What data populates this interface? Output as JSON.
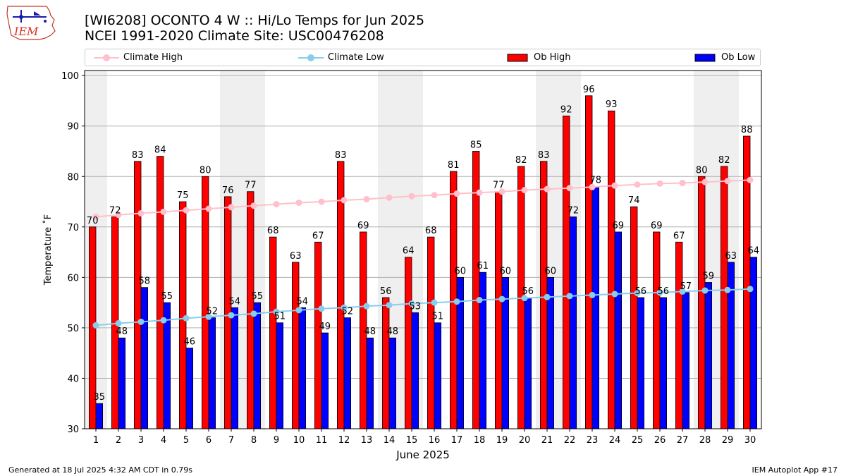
{
  "logo_text": "IEM",
  "title_line1": "[WI6208] OCONTO 4 W :: Hi/Lo Temps for Jun 2025",
  "title_line2": "NCEI 1991-2020 Climate Site: USC00476208",
  "footer_left": "Generated at 18 Jul 2025 4:32 AM CDT in 0.79s",
  "footer_right": "IEM Autoplot App #17",
  "legend": [
    {
      "label": "Climate High",
      "kind": "line",
      "color": "#ffc0cb"
    },
    {
      "label": "Climate Low",
      "kind": "line",
      "color": "#87ceeb"
    },
    {
      "label": "Ob High",
      "kind": "bar",
      "color": "#ff0000"
    },
    {
      "label": "Ob Low",
      "kind": "bar",
      "color": "#0000ff"
    }
  ],
  "chart_data": {
    "type": "bar",
    "xlabel": "June 2025",
    "ylabel": "Temperature ˚F",
    "ylim": [
      30,
      101
    ],
    "yticks": [
      30,
      40,
      50,
      60,
      70,
      80,
      90,
      100
    ],
    "grid": "horizontal",
    "legend_position": "top",
    "categories": [
      "1",
      "2",
      "3",
      "4",
      "5",
      "6",
      "7",
      "8",
      "9",
      "10",
      "11",
      "12",
      "13",
      "14",
      "15",
      "16",
      "17",
      "18",
      "19",
      "20",
      "21",
      "22",
      "23",
      "24",
      "25",
      "26",
      "27",
      "28",
      "29",
      "30"
    ],
    "weekend_shading": [
      [
        1,
        1
      ],
      [
        7,
        8
      ],
      [
        14,
        15
      ],
      [
        21,
        22
      ],
      [
        28,
        29
      ]
    ],
    "series": [
      {
        "name": "Ob High",
        "type": "bar",
        "color": "#ff0000",
        "values": [
          70,
          72,
          83,
          84,
          75,
          80,
          76,
          77,
          68,
          63,
          67,
          83,
          69,
          56,
          64,
          68,
          81,
          85,
          77,
          82,
          83,
          92,
          96,
          93,
          74,
          69,
          67,
          80,
          82,
          88
        ]
      },
      {
        "name": "Ob Low",
        "type": "bar",
        "color": "#0000ff",
        "values": [
          35,
          48,
          58,
          55,
          46,
          52,
          54,
          55,
          51,
          54,
          49,
          52,
          48,
          48,
          53,
          51,
          60,
          61,
          60,
          56,
          60,
          72,
          78,
          69,
          56,
          56,
          57,
          59,
          63,
          64
        ]
      },
      {
        "name": "Climate High",
        "type": "line",
        "color": "#ffc0cb",
        "values": [
          72.0,
          72.4,
          72.7,
          73.0,
          73.3,
          73.6,
          73.9,
          74.2,
          74.5,
          74.8,
          75.0,
          75.3,
          75.5,
          75.8,
          76.1,
          76.3,
          76.6,
          76.8,
          77.0,
          77.3,
          77.5,
          77.7,
          77.9,
          78.2,
          78.4,
          78.6,
          78.7,
          78.9,
          79.1,
          79.3
        ]
      },
      {
        "name": "Climate Low",
        "type": "line",
        "color": "#87ceeb",
        "values": [
          50.5,
          50.9,
          51.2,
          51.5,
          51.9,
          52.2,
          52.5,
          52.8,
          53.2,
          53.5,
          53.8,
          54.0,
          54.3,
          54.5,
          54.8,
          55.0,
          55.2,
          55.5,
          55.7,
          55.9,
          56.1,
          56.3,
          56.5,
          56.7,
          56.9,
          57.0,
          57.2,
          57.4,
          57.5,
          57.7
        ]
      }
    ]
  }
}
